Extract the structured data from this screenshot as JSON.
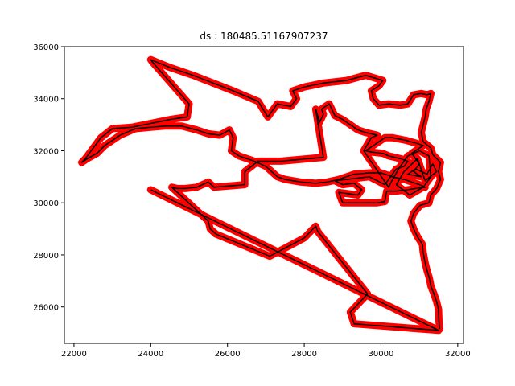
{
  "chart_data": {
    "type": "scatter",
    "title": "ds : 180485.51167907237",
    "xlabel": "",
    "ylabel": "",
    "xlim": [
      21750,
      32150
    ],
    "ylim": [
      24600,
      36000
    ],
    "xticks": [
      22000,
      24000,
      26000,
      28000,
      30000,
      32000
    ],
    "yticks": [
      26000,
      28000,
      30000,
      32000,
      34000,
      36000
    ],
    "xtick_labels": [
      "22000",
      "24000",
      "26000",
      "28000",
      "30000",
      "32000"
    ],
    "ytick_labels": [
      "26000",
      "28000",
      "30000",
      "32000",
      "34000",
      "36000"
    ],
    "grid": false,
    "colors": {
      "points": "#ff0000",
      "path": "#000000"
    },
    "series": [
      {
        "style": "points-and-path",
        "points": [
          [
            31530,
            25150
          ],
          [
            31510,
            25450
          ],
          [
            31500,
            25900
          ],
          [
            31450,
            26200
          ],
          [
            31380,
            26500
          ],
          [
            31300,
            26800
          ],
          [
            31260,
            27100
          ],
          [
            31200,
            27400
          ],
          [
            31150,
            27700
          ],
          [
            31100,
            28100
          ],
          [
            31080,
            28400
          ],
          [
            30950,
            28700
          ],
          [
            30850,
            29000
          ],
          [
            30780,
            29300
          ],
          [
            30850,
            29600
          ],
          [
            31020,
            29900
          ],
          [
            31250,
            30000
          ],
          [
            31300,
            30300
          ],
          [
            31450,
            30550
          ],
          [
            31550,
            30900
          ],
          [
            31500,
            31200
          ],
          [
            31550,
            31550
          ],
          [
            31350,
            31850
          ],
          [
            31300,
            32100
          ],
          [
            31100,
            32350
          ],
          [
            31050,
            32700
          ],
          [
            31100,
            33000
          ],
          [
            31150,
            33300
          ],
          [
            31180,
            33600
          ],
          [
            31250,
            33900
          ],
          [
            31300,
            34200
          ],
          [
            31200,
            34150
          ],
          [
            31050,
            34200
          ],
          [
            30850,
            34150
          ],
          [
            30700,
            33800
          ],
          [
            30500,
            33750
          ],
          [
            30200,
            33800
          ],
          [
            29950,
            33750
          ],
          [
            29800,
            34000
          ],
          [
            29750,
            34300
          ],
          [
            29950,
            34500
          ],
          [
            30050,
            34700
          ],
          [
            29600,
            34900
          ],
          [
            29100,
            34700
          ],
          [
            28500,
            34600
          ],
          [
            28000,
            34450
          ],
          [
            27900,
            34400
          ],
          [
            27700,
            34300
          ],
          [
            27800,
            34000
          ],
          [
            27650,
            33700
          ],
          [
            27300,
            33800
          ],
          [
            27050,
            33300
          ],
          [
            26800,
            33900
          ],
          [
            26150,
            34300
          ],
          [
            25100,
            34900
          ],
          [
            24500,
            35200
          ],
          [
            24000,
            35500
          ],
          [
            24050,
            35400
          ],
          [
            25000,
            33800
          ],
          [
            24950,
            33300
          ],
          [
            24500,
            33200
          ],
          [
            23500,
            32900
          ],
          [
            23000,
            32850
          ],
          [
            22700,
            32500
          ],
          [
            22500,
            32100
          ],
          [
            22300,
            31700
          ],
          [
            22200,
            31550
          ],
          [
            22350,
            31700
          ],
          [
            22600,
            31900
          ],
          [
            22800,
            32200
          ],
          [
            23200,
            32600
          ],
          [
            23600,
            32850
          ],
          [
            24000,
            32900
          ],
          [
            24400,
            32950
          ],
          [
            24800,
            32950
          ],
          [
            25200,
            32800
          ],
          [
            25500,
            32650
          ],
          [
            25800,
            32600
          ],
          [
            26050,
            32800
          ],
          [
            26150,
            32500
          ],
          [
            26100,
            32000
          ],
          [
            26300,
            31800
          ],
          [
            26700,
            31600
          ],
          [
            27000,
            31400
          ],
          [
            27300,
            31000
          ],
          [
            27500,
            30900
          ],
          [
            27900,
            30800
          ],
          [
            28300,
            30750
          ],
          [
            28600,
            30800
          ],
          [
            28900,
            30900
          ],
          [
            29300,
            31100
          ],
          [
            29700,
            31150
          ],
          [
            30000,
            31150
          ],
          [
            30300,
            31000
          ],
          [
            30600,
            30900
          ],
          [
            30800,
            30800
          ],
          [
            31000,
            30700
          ],
          [
            31150,
            30600
          ],
          [
            30900,
            30550
          ],
          [
            30700,
            30500
          ],
          [
            30400,
            30450
          ],
          [
            30150,
            30450
          ],
          [
            30100,
            30050
          ],
          [
            29900,
            30000
          ],
          [
            29000,
            30000
          ],
          [
            28900,
            30400
          ],
          [
            29400,
            30300
          ],
          [
            29500,
            30500
          ],
          [
            29300,
            30750
          ],
          [
            29000,
            30700
          ],
          [
            28800,
            30850
          ],
          [
            29700,
            31000
          ],
          [
            30100,
            30700
          ],
          [
            30400,
            31300
          ],
          [
            30600,
            31400
          ],
          [
            30700,
            31600
          ],
          [
            30500,
            31700
          ],
          [
            30200,
            31800
          ],
          [
            30050,
            31900
          ],
          [
            29750,
            31950
          ],
          [
            29600,
            32000
          ],
          [
            29700,
            32100
          ],
          [
            29900,
            32300
          ],
          [
            30100,
            32500
          ],
          [
            30300,
            32500
          ],
          [
            30650,
            32400
          ],
          [
            30900,
            32300
          ],
          [
            31100,
            32200
          ],
          [
            30800,
            31900
          ],
          [
            31000,
            31500
          ],
          [
            30850,
            31200
          ],
          [
            31050,
            31000
          ],
          [
            30700,
            31100
          ],
          [
            30900,
            31300
          ],
          [
            31200,
            31100
          ],
          [
            31350,
            31500
          ],
          [
            31450,
            31200
          ],
          [
            31150,
            30850
          ],
          [
            30950,
            31700
          ],
          [
            30600,
            31200
          ],
          [
            30400,
            30700
          ],
          [
            30750,
            30300
          ],
          [
            31100,
            30600
          ],
          [
            31300,
            31000
          ],
          [
            31250,
            31800
          ],
          [
            31000,
            32000
          ],
          [
            30700,
            31800
          ],
          [
            30500,
            31400
          ],
          [
            30300,
            30900
          ],
          [
            30200,
            30600
          ],
          [
            29550,
            32000
          ],
          [
            29750,
            32500
          ],
          [
            29900,
            32600
          ],
          [
            29600,
            32700
          ],
          [
            29400,
            32800
          ],
          [
            29200,
            33000
          ],
          [
            29000,
            33200
          ],
          [
            28800,
            33350
          ],
          [
            28650,
            33800
          ],
          [
            28450,
            33600
          ],
          [
            28500,
            33400
          ],
          [
            28400,
            33100
          ],
          [
            28300,
            33600
          ],
          [
            28500,
            31750
          ],
          [
            27400,
            31600
          ],
          [
            26800,
            31600
          ],
          [
            26450,
            31200
          ],
          [
            26450,
            30700
          ],
          [
            25650,
            30600
          ],
          [
            25500,
            30800
          ],
          [
            25200,
            30600
          ],
          [
            24900,
            30550
          ],
          [
            24700,
            30550
          ],
          [
            24550,
            30600
          ],
          [
            25500,
            29300
          ],
          [
            25550,
            29000
          ],
          [
            25700,
            28800
          ],
          [
            27100,
            27950
          ],
          [
            28000,
            28650
          ],
          [
            28300,
            29100
          ],
          [
            28350,
            28900
          ],
          [
            29650,
            26500
          ],
          [
            29200,
            25800
          ],
          [
            29300,
            25350
          ],
          [
            31500,
            25100
          ],
          [
            24000,
            30500
          ]
        ]
      }
    ]
  }
}
